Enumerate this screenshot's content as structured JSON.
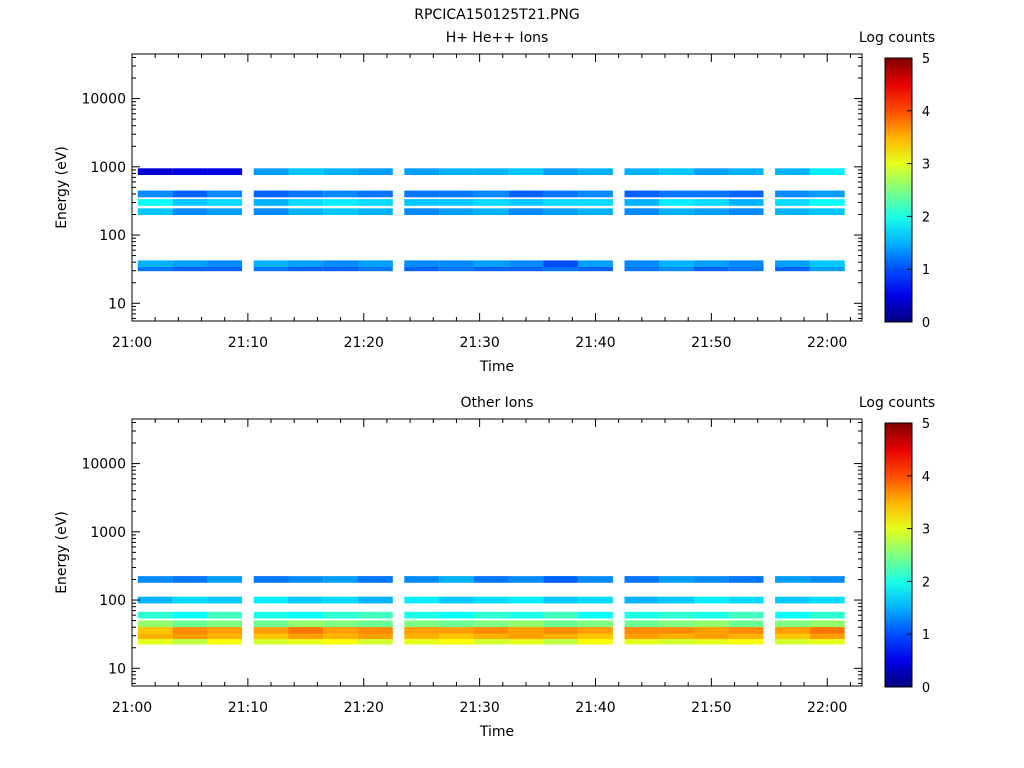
{
  "figure_title": "RPCICA150125T21.PNG",
  "chart_data": [
    {
      "type": "heatmap",
      "title": "H+ He++ Ions",
      "xlabel": "Time",
      "ylabel": "Energy (eV)",
      "colorbar_label": "Log counts",
      "colorbar_ticks": [
        "0",
        "1",
        "2",
        "3",
        "4",
        "5"
      ],
      "color_range": [
        0,
        5
      ],
      "x_ticks": [
        "21:00",
        "21:10",
        "21:20",
        "21:30",
        "21:40",
        "21:50",
        "22:00"
      ],
      "y_ticks": [
        "10",
        "100",
        "1000",
        "10000"
      ],
      "xlim": [
        "21:00",
        "22:03"
      ],
      "ylim": [
        5.5,
        45000
      ],
      "y_scale": "log",
      "time_columns": [
        "21:02",
        "21:05",
        "21:08",
        "21:12",
        "21:15",
        "21:18",
        "21:21",
        "21:25",
        "21:28",
        "21:31",
        "21:34",
        "21:37",
        "21:40",
        "21:44",
        "21:47",
        "21:50",
        "21:53",
        "21:57",
        "22:00"
      ],
      "bands": [
        {
          "energy": 33,
          "values": [
            1.2,
            1.1,
            1.1,
            1.2,
            1.1,
            1.1,
            1.2,
            1.1,
            1.2,
            1.1,
            1.1,
            1.2,
            1.1,
            1.2,
            1.3,
            1.1,
            1.2,
            1.1,
            1.4
          ]
        },
        {
          "energy": 38,
          "values": [
            1.5,
            1.4,
            1.3,
            1.5,
            1.4,
            1.3,
            1.4,
            1.3,
            1.3,
            1.4,
            1.3,
            1.0,
            1.4,
            1.3,
            1.5,
            1.4,
            1.3,
            1.4,
            1.6
          ]
        },
        {
          "energy": 220,
          "values": [
            1.6,
            1.3,
            1.4,
            1.3,
            1.5,
            1.6,
            1.5,
            1.3,
            1.4,
            1.5,
            1.3,
            1.4,
            1.5,
            1.3,
            1.5,
            1.4,
            1.3,
            1.5,
            1.6
          ]
        },
        {
          "energy": 300,
          "values": [
            1.9,
            1.6,
            1.7,
            1.5,
            1.7,
            1.8,
            1.7,
            1.6,
            1.6,
            1.7,
            1.6,
            1.7,
            1.7,
            1.5,
            1.8,
            1.7,
            1.5,
            1.7,
            1.9
          ]
        },
        {
          "energy": 400,
          "values": [
            1.3,
            1.1,
            1.3,
            1.1,
            1.2,
            1.3,
            1.2,
            1.2,
            1.2,
            1.3,
            1.1,
            1.2,
            1.3,
            1.1,
            1.2,
            1.2,
            1.1,
            1.3,
            1.4
          ]
        },
        {
          "energy": 850,
          "values": [
            0.4,
            0.5,
            0.5,
            1.4,
            1.6,
            1.5,
            1.4,
            1.4,
            1.5,
            1.5,
            1.6,
            1.4,
            1.5,
            1.5,
            1.6,
            1.4,
            1.5,
            1.5,
            1.8
          ]
        }
      ]
    },
    {
      "type": "heatmap",
      "title": "Other Ions",
      "xlabel": "Time",
      "ylabel": "Energy (eV)",
      "colorbar_label": "Log counts",
      "colorbar_ticks": [
        "0",
        "1",
        "2",
        "3",
        "4",
        "5"
      ],
      "color_range": [
        0,
        5
      ],
      "x_ticks": [
        "21:00",
        "21:10",
        "21:20",
        "21:30",
        "21:40",
        "21:50",
        "22:00"
      ],
      "y_ticks": [
        "10",
        "100",
        "1000",
        "10000"
      ],
      "xlim": [
        "21:00",
        "22:03"
      ],
      "ylim": [
        5.5,
        45000
      ],
      "y_scale": "log",
      "time_columns": [
        "21:02",
        "21:05",
        "21:08",
        "21:12",
        "21:15",
        "21:18",
        "21:21",
        "21:25",
        "21:28",
        "21:31",
        "21:34",
        "21:37",
        "21:40",
        "21:44",
        "21:47",
        "21:50",
        "21:53",
        "21:57",
        "22:00"
      ],
      "bands": [
        {
          "energy": 25,
          "values": [
            3.0,
            2.8,
            3.1,
            2.9,
            3.0,
            3.1,
            2.9,
            3.0,
            3.1,
            2.9,
            3.0,
            2.8,
            3.1,
            3.0,
            2.9,
            3.0,
            3.1,
            2.9,
            3.0
          ]
        },
        {
          "energy": 30,
          "values": [
            3.5,
            3.6,
            3.5,
            3.4,
            3.6,
            3.5,
            3.6,
            3.5,
            3.4,
            3.5,
            3.6,
            3.5,
            3.4,
            3.6,
            3.5,
            3.6,
            3.5,
            3.4,
            3.6
          ]
        },
        {
          "energy": 36,
          "values": [
            3.4,
            3.7,
            3.6,
            3.6,
            3.8,
            3.6,
            3.7,
            3.6,
            3.6,
            3.7,
            3.6,
            3.7,
            3.6,
            3.7,
            3.7,
            3.6,
            3.7,
            3.6,
            3.8
          ]
        },
        {
          "energy": 45,
          "values": [
            2.6,
            2.4,
            2.5,
            2.4,
            2.6,
            2.5,
            2.4,
            2.5,
            2.4,
            2.5,
            2.6,
            2.4,
            2.5,
            2.4,
            2.5,
            2.6,
            2.4,
            2.5,
            2.6
          ]
        },
        {
          "energy": 60,
          "values": [
            2.1,
            1.9,
            2.2,
            2.0,
            1.9,
            2.1,
            2.2,
            2.0,
            1.9,
            2.1,
            2.0,
            2.2,
            1.9,
            2.0,
            2.1,
            2.0,
            2.2,
            1.9,
            2.1
          ]
        },
        {
          "energy": 100,
          "values": [
            1.5,
            1.7,
            1.6,
            1.8,
            1.6,
            1.7,
            1.5,
            1.8,
            1.6,
            1.7,
            1.8,
            1.6,
            1.7,
            1.5,
            1.6,
            1.8,
            1.7,
            1.6,
            1.7
          ]
        },
        {
          "energy": 200,
          "values": [
            1.3,
            1.2,
            1.4,
            1.2,
            1.3,
            1.4,
            1.2,
            1.3,
            1.5,
            1.2,
            1.3,
            1.1,
            1.3,
            1.2,
            1.4,
            1.3,
            1.2,
            1.4,
            1.3
          ]
        }
      ]
    }
  ]
}
